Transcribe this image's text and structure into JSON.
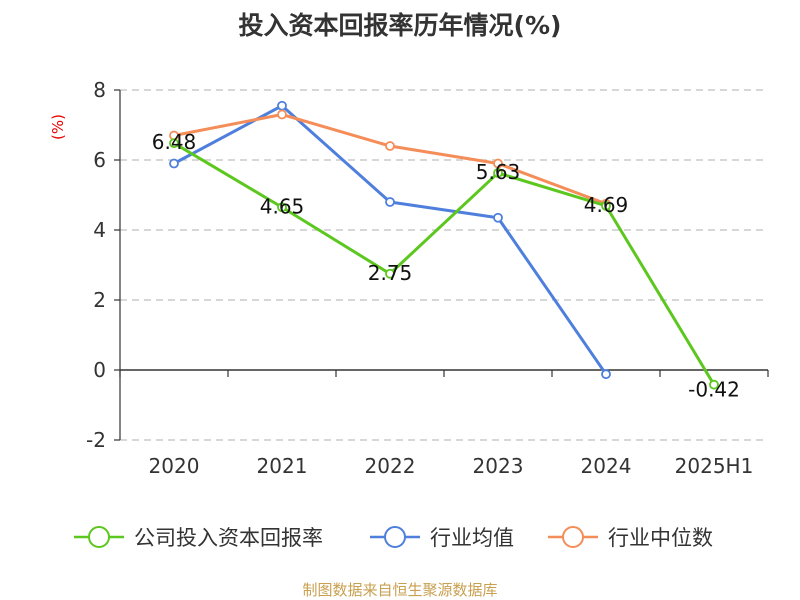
{
  "chart_data": {
    "type": "line",
    "title": "投入资本回报率历年情况(%)",
    "ylabel": "(%)",
    "xlabel": "",
    "categories": [
      "2020",
      "2021",
      "2022",
      "2023",
      "2024",
      "2025H1"
    ],
    "ylim": [
      -2,
      8
    ],
    "yticks": [
      "8",
      "6",
      "4",
      "2",
      "0",
      "-2"
    ],
    "grid": true,
    "legend_position": "bottom",
    "series": [
      {
        "name": "公司投入资本回报率",
        "color": "#5cc71e",
        "values": [
          6.48,
          4.65,
          2.75,
          5.63,
          4.69,
          -0.42
        ],
        "labels": [
          "6.48",
          "4.65",
          "2.75",
          "5.63",
          "4.69",
          "-0.42"
        ]
      },
      {
        "name": "行业均值",
        "color": "#4f7fdc",
        "values": [
          5.9,
          7.55,
          4.8,
          4.35,
          -0.12,
          null
        ]
      },
      {
        "name": "行业中位数",
        "color": "#f48d58",
        "values": [
          6.7,
          7.3,
          6.4,
          5.9,
          4.75,
          null
        ]
      }
    ],
    "source": "制图数据来自恒生聚源数据库"
  }
}
